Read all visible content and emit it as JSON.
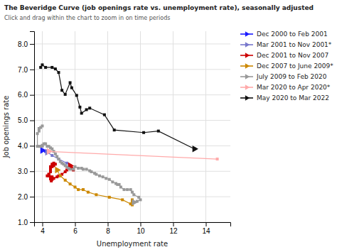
{
  "chart_data": {
    "type": "line",
    "title": "The Beveridge Curve (job openings rate vs. unemployment rate), seasonally adjusted",
    "subtitle": "Click and drag within the chart to zoom in on time periods",
    "x_label": "Unemployment rate",
    "y_label": "Job openings rate",
    "xlim": [
      3.5,
      15.5
    ],
    "ylim": [
      1.0,
      8.5
    ],
    "xticks": [
      4,
      6,
      8,
      10,
      12,
      14
    ],
    "yticks": [
      {
        "value": 1,
        "label": "1.0"
      },
      {
        "value": 2,
        "label": "2.0"
      },
      {
        "value": 3,
        "label": "3.0"
      },
      {
        "value": 4,
        "label": "4.0"
      },
      {
        "value": 5,
        "label": "5.0"
      },
      {
        "value": 6,
        "label": "6.0"
      },
      {
        "value": 7,
        "label": "7.0"
      },
      {
        "value": 8,
        "label": "8.0"
      }
    ],
    "grid": true,
    "legend": "right",
    "marker": "square",
    "series": [
      {
        "name": "Dec 2000 to Feb 2001",
        "color": "#1a1aff",
        "x": [
          4.0,
          4.2,
          4.3
        ],
        "values": [
          3.82,
          3.78,
          3.75
        ]
      },
      {
        "name": "Mar 2001 to Nov 2001*",
        "color": "#7777cc",
        "x": [
          4.3,
          4.6,
          5.0,
          5.5
        ],
        "values": [
          3.75,
          3.62,
          3.48,
          3.32
        ]
      },
      {
        "name": "Dec 2001 to Nov 2007",
        "color": "#cc0000",
        "x": [
          5.7,
          5.8,
          5.9,
          5.75,
          5.5,
          5.4,
          5.2,
          5.0,
          4.9,
          4.7,
          4.6,
          4.55,
          4.5,
          4.6,
          4.5,
          4.4,
          4.4,
          4.3,
          4.4,
          4.5,
          4.5,
          4.5,
          4.6,
          4.6,
          4.5,
          4.6,
          4.7,
          4.7,
          4.8,
          4.7
        ],
        "values": [
          3.22,
          3.12,
          3.05,
          3.1,
          3.05,
          2.98,
          2.88,
          2.82,
          2.78,
          2.72,
          2.68,
          2.62,
          2.7,
          2.78,
          2.78,
          2.82,
          2.88,
          2.82,
          2.88,
          2.98,
          3.08,
          3.12,
          3.18,
          3.22,
          3.18,
          3.28,
          3.32,
          3.28,
          3.28,
          3.22
        ]
      },
      {
        "name": "Dec 2007 to June 2009*",
        "color": "#cc8800",
        "x": [
          4.9,
          5.1,
          5.4,
          5.7,
          6.0,
          6.2,
          6.5,
          6.8,
          7.3,
          8.1,
          8.9,
          9.4,
          9.5,
          9.5,
          9.5
        ],
        "values": [
          3.05,
          2.82,
          2.65,
          2.5,
          2.38,
          2.28,
          2.28,
          2.18,
          2.08,
          1.98,
          1.88,
          1.72,
          1.68,
          1.82,
          1.88
        ]
      },
      {
        "name": "July 2009 to Feb 2020",
        "color": "#999999",
        "x": [
          9.6,
          9.8,
          10.0,
          9.9,
          9.6,
          9.5,
          9.4,
          9.2,
          9.0,
          8.8,
          8.7,
          8.6,
          8.5,
          8.3,
          8.1,
          7.9,
          7.7,
          7.5,
          7.3,
          7.2,
          7.0,
          6.9,
          6.7,
          6.5,
          6.4,
          6.2,
          6.0,
          5.9,
          5.7,
          5.6,
          5.5,
          5.4,
          5.3,
          5.2,
          5.1,
          5.0,
          4.9,
          4.8,
          4.7,
          4.6,
          4.5,
          4.4,
          4.3,
          4.2,
          4.1,
          4.0,
          4.0,
          3.9,
          3.8,
          3.7,
          3.7,
          3.8,
          3.8,
          3.9,
          4.0
        ],
        "values": [
          1.78,
          1.82,
          1.88,
          1.98,
          2.08,
          2.18,
          2.28,
          2.28,
          2.28,
          2.38,
          2.48,
          2.48,
          2.52,
          2.58,
          2.68,
          2.72,
          2.78,
          2.82,
          2.88,
          2.92,
          2.98,
          3.02,
          3.08,
          3.08,
          3.12,
          3.12,
          3.18,
          3.08,
          3.08,
          3.12,
          3.18,
          3.22,
          3.28,
          3.32,
          3.38,
          3.48,
          3.58,
          3.68,
          3.78,
          3.88,
          3.92,
          3.98,
          3.98,
          4.08,
          4.08,
          4.02,
          3.98,
          3.98,
          3.98,
          3.98,
          4.48,
          4.58,
          4.68,
          4.72,
          4.78
        ]
      },
      {
        "name": "Mar 2020 to Apr 2020*",
        "color": "#ffaaaa",
        "x": [
          4.4,
          14.7
        ],
        "values": [
          3.78,
          3.48
        ]
      },
      {
        "name": "May 2020 to Mar 2022",
        "color": "#111111",
        "x": [
          13.3,
          11.1,
          10.2,
          8.4,
          7.8,
          6.9,
          6.7,
          6.4,
          6.3,
          6.1,
          5.8,
          5.7,
          5.4,
          5.2,
          5.0,
          4.8,
          4.6,
          4.2,
          4.0,
          3.9
        ],
        "values": [
          3.88,
          4.58,
          4.52,
          4.62,
          5.22,
          5.48,
          5.42,
          5.28,
          5.52,
          5.98,
          6.28,
          6.48,
          6.02,
          6.18,
          6.88,
          7.02,
          7.08,
          7.08,
          7.18,
          7.08
        ]
      }
    ]
  }
}
